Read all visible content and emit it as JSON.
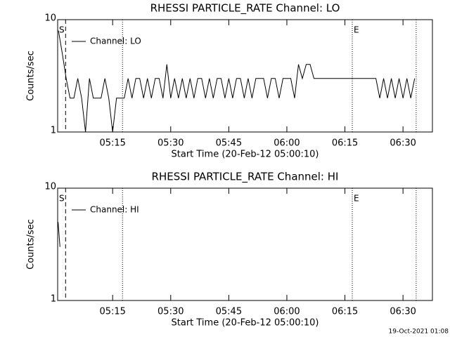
{
  "chart_data": [
    {
      "type": "line",
      "title": "RHESSI PARTICLE_RATE Channel: LO",
      "xlabel": "Start Time (20-Feb-12 05:00:10)",
      "ylabel": "Counts/sec",
      "xlim": [
        0.8,
        97.6
      ],
      "xticks": [
        {
          "value": 15,
          "label": "05:15"
        },
        {
          "value": 30,
          "label": "05:30"
        },
        {
          "value": 45,
          "label": "05:45"
        },
        {
          "value": 60,
          "label": "06:00"
        },
        {
          "value": 75,
          "label": "06:15"
        },
        {
          "value": 90,
          "label": "06:30"
        }
      ],
      "ylim": [
        1,
        10
      ],
      "yticks": [
        1,
        10
      ],
      "log": true,
      "series": [
        {
          "name": "Channel: LO",
          "color": "#000000",
          "x": [
            1,
            2,
            3,
            4,
            5,
            6,
            7,
            8,
            9,
            10,
            11,
            12,
            13,
            14,
            15,
            16,
            17,
            18,
            19,
            20,
            21,
            22,
            23,
            24,
            25,
            26,
            27,
            28,
            29,
            30,
            31,
            32,
            33,
            34,
            35,
            36,
            37,
            38,
            39,
            40,
            41,
            42,
            43,
            44,
            45,
            46,
            47,
            48,
            49,
            50,
            51,
            52,
            53,
            54,
            55,
            56,
            57,
            58,
            59,
            60,
            61,
            62,
            63,
            64,
            65,
            66,
            67,
            68,
            69,
            70,
            71,
            72,
            73,
            74,
            75,
            76,
            77,
            78,
            79,
            80,
            81,
            82,
            83,
            84,
            85,
            86,
            87,
            88,
            89,
            90,
            91,
            92,
            93
          ],
          "values": [
            8,
            5,
            3,
            2,
            2,
            3,
            2,
            1,
            3,
            2,
            2,
            2,
            3,
            2,
            1,
            2,
            2,
            2,
            3,
            2,
            3,
            3,
            2,
            3,
            2,
            3,
            3,
            2,
            4,
            2,
            3,
            2,
            3,
            2,
            3,
            2,
            3,
            3,
            2,
            3,
            2,
            3,
            3,
            2,
            3,
            2,
            3,
            3,
            2,
            3,
            2,
            3,
            3,
            3,
            2,
            3,
            3,
            2,
            3,
            3,
            3,
            2,
            4,
            3,
            4,
            4,
            3,
            3,
            3,
            3,
            3,
            3,
            3,
            3,
            3,
            3,
            3,
            3,
            3,
            3,
            3,
            3,
            3,
            2,
            3,
            2,
            3,
            2,
            3,
            2,
            3,
            2,
            3
          ]
        }
      ],
      "vlines": [
        {
          "x": 2.85,
          "style": "dashed"
        },
        {
          "x": 17.55,
          "style": "dotted"
        },
        {
          "x": 76.9,
          "style": "dotted"
        },
        {
          "x": 93.4,
          "style": "dotted"
        }
      ],
      "annotations": [
        {
          "text": "S",
          "x": 0.8
        },
        {
          "text": "E",
          "x": 76.9
        }
      ]
    },
    {
      "type": "line",
      "title": "RHESSI PARTICLE_RATE Channel: HI",
      "xlabel": "Start Time (20-Feb-12 05:00:10)",
      "ylabel": "Counts/sec",
      "xlim": [
        0.8,
        97.6
      ],
      "xticks": [
        {
          "value": 15,
          "label": "05:15"
        },
        {
          "value": 30,
          "label": "05:30"
        },
        {
          "value": 45,
          "label": "05:45"
        },
        {
          "value": 60,
          "label": "06:00"
        },
        {
          "value": 75,
          "label": "06:15"
        },
        {
          "value": 90,
          "label": "06:30"
        }
      ],
      "ylim": [
        1,
        10
      ],
      "yticks": [
        1,
        10
      ],
      "log": true,
      "series": [
        {
          "name": "Channel: HI",
          "color": "#000000",
          "x": [
            0.9,
            1.4
          ],
          "values": [
            5,
            3
          ]
        }
      ],
      "vlines": [
        {
          "x": 2.85,
          "style": "dashed"
        },
        {
          "x": 17.55,
          "style": "dotted"
        },
        {
          "x": 76.9,
          "style": "dotted"
        },
        {
          "x": 93.4,
          "style": "dotted"
        }
      ],
      "annotations": [
        {
          "text": "S",
          "x": 0.8
        },
        {
          "text": "E",
          "x": 76.9
        }
      ]
    }
  ],
  "footer": "19-Oct-2021 01:08"
}
